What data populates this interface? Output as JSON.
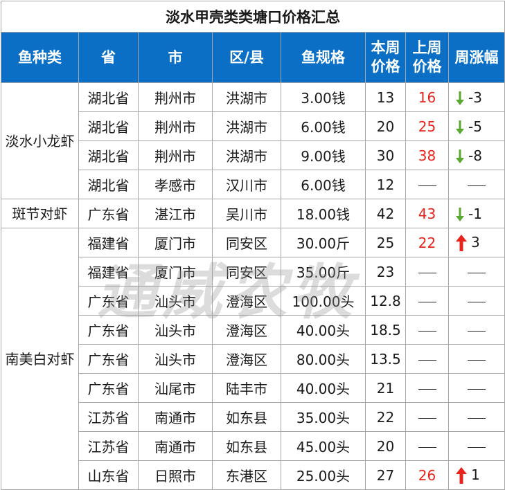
{
  "title": "淡水甲壳类类塘口价格汇总",
  "headers": [
    "鱼种类",
    "省",
    "市",
    "区/县",
    "鱼规格",
    "本周价格",
    "上周价格",
    "周涨幅"
  ],
  "groups": [
    "淡水小龙虾",
    "斑节对虾",
    "南美白对虾"
  ],
  "rows": [
    {
      "province": "湖北省",
      "city": "荆州市",
      "district": "洪湖市",
      "spec": "3.00钱",
      "this_week": "13",
      "last_week": "16",
      "change": "-3",
      "trend": "down"
    },
    {
      "province": "湖北省",
      "city": "荆州市",
      "district": "洪湖市",
      "spec": "6.00钱",
      "this_week": "20",
      "last_week": "25",
      "change": "-5",
      "trend": "down"
    },
    {
      "province": "湖北省",
      "city": "荆州市",
      "district": "洪湖市",
      "spec": "9.00钱",
      "this_week": "30",
      "last_week": "38",
      "change": "-8",
      "trend": "down"
    },
    {
      "province": "湖北省",
      "city": "孝感市",
      "district": "汉川市",
      "spec": "6.00钱",
      "this_week": "12",
      "last_week": null,
      "change": null,
      "trend": "none"
    },
    {
      "province": "广东省",
      "city": "湛江市",
      "district": "吴川市",
      "spec": "18.00钱",
      "this_week": "42",
      "last_week": "43",
      "change": "-1",
      "trend": "down"
    },
    {
      "province": "福建省",
      "city": "厦门市",
      "district": "同安区",
      "spec": "30.00斤",
      "this_week": "25",
      "last_week": "22",
      "change": "3",
      "trend": "up"
    },
    {
      "province": "福建省",
      "city": "厦门市",
      "district": "同安区",
      "spec": "35.00斤",
      "this_week": "23",
      "last_week": null,
      "change": null,
      "trend": "none"
    },
    {
      "province": "广东省",
      "city": "汕头市",
      "district": "澄海区",
      "spec": "100.00头",
      "this_week": "12.8",
      "last_week": null,
      "change": null,
      "trend": "none"
    },
    {
      "province": "广东省",
      "city": "汕头市",
      "district": "澄海区",
      "spec": "40.00头",
      "this_week": "18.5",
      "last_week": null,
      "change": null,
      "trend": "none"
    },
    {
      "province": "广东省",
      "city": "汕头市",
      "district": "澄海区",
      "spec": "80.00头",
      "this_week": "13.5",
      "last_week": null,
      "change": null,
      "trend": "none"
    },
    {
      "province": "广东省",
      "city": "汕尾市",
      "district": "陆丰市",
      "spec": "40.00头",
      "this_week": "21",
      "last_week": null,
      "change": null,
      "trend": "none"
    },
    {
      "province": "江苏省",
      "city": "南通市",
      "district": "如东县",
      "spec": "35.00头",
      "this_week": "22",
      "last_week": null,
      "change": null,
      "trend": "none"
    },
    {
      "province": "江苏省",
      "city": "南通市",
      "district": "如东县",
      "spec": "45.00头",
      "this_week": "20",
      "last_week": null,
      "change": null,
      "trend": "none"
    },
    {
      "province": "山东省",
      "city": "日照市",
      "district": "东港区",
      "spec": "25.00头",
      "this_week": "27",
      "last_week": "26",
      "change": "1",
      "trend": "up"
    }
  ],
  "watermark": "通威农牧",
  "colors": {
    "header_bg": "#0b6fc6",
    "header_text": "#ffffff",
    "price_red": "#e8231b",
    "down_arrow": "#5aa832",
    "up_arrow": "#e8231b"
  },
  "icons": {
    "down": "down-arrow-icon",
    "up": "up-arrow-icon",
    "empty": "dash"
  }
}
